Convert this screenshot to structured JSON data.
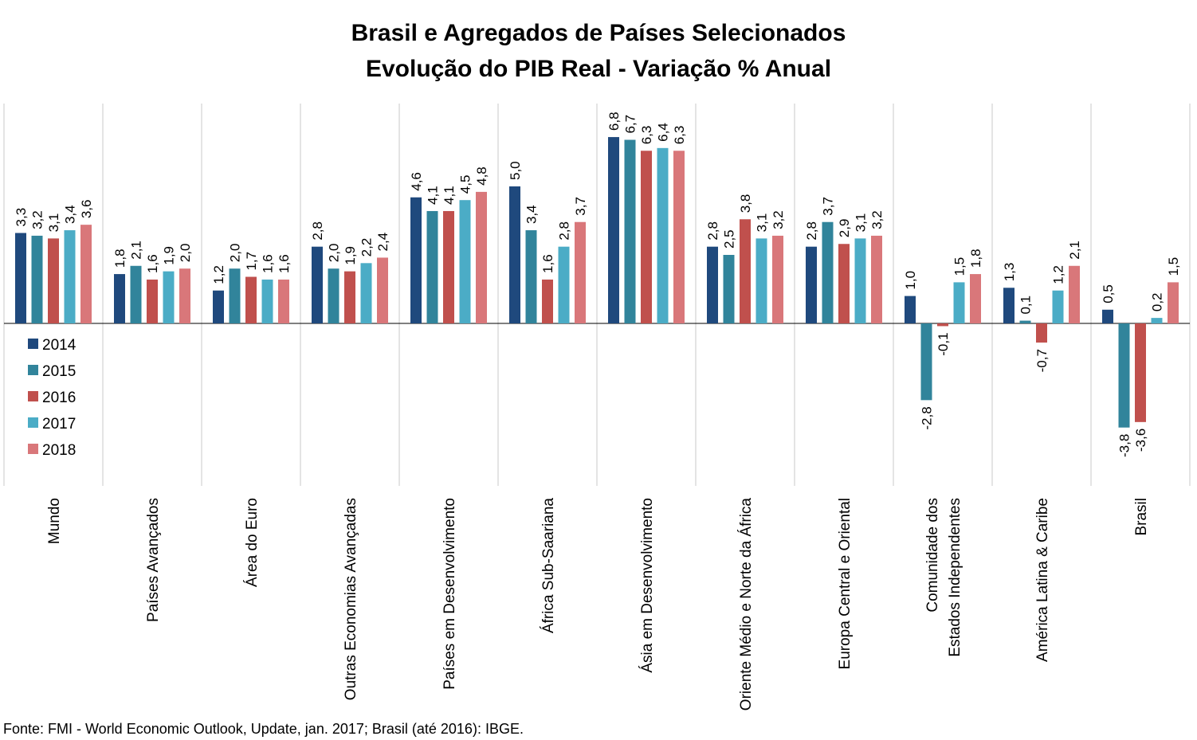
{
  "chart_data": {
    "type": "bar",
    "title": "Brasil e Agregados de Países Selecionados",
    "subtitle": "Evolução do PIB Real - Variação % Anual",
    "source": "Fonte: FMI - World Economic Outlook, Update, jan. 2017; Brasil (até 2016): IBGE.",
    "categories": [
      [
        "Mundo"
      ],
      [
        "Países Avançados"
      ],
      [
        "Área do Euro"
      ],
      [
        "Outras Economias Avançadas"
      ],
      [
        "Países em Desenvolvimento"
      ],
      [
        "África Sub-Saariana"
      ],
      [
        "Ásia em Desenvolvimento"
      ],
      [
        "Oriente Médio e Norte da África"
      ],
      [
        "Europa Central e Oriental"
      ],
      [
        "Comunidade dos",
        "Estados Independentes"
      ],
      [
        "América Latina & Caribe"
      ],
      [
        "Brasil"
      ]
    ],
    "series": [
      {
        "name": "2014",
        "color": "#1f497d",
        "values": [
          3.3,
          1.8,
          1.2,
          2.8,
          4.6,
          5.0,
          6.8,
          2.8,
          2.8,
          1.0,
          1.3,
          0.5
        ],
        "labels": [
          "3,3",
          "1,8",
          "1,2",
          "2,8",
          "4,6",
          "5,0",
          "6,8",
          "2,8",
          "2,8",
          "1,0",
          "1,3",
          "0,5"
        ]
      },
      {
        "name": "2015",
        "color": "#31849b",
        "values": [
          3.2,
          2.1,
          2.0,
          2.0,
          4.1,
          3.4,
          6.7,
          2.5,
          3.7,
          -2.8,
          0.1,
          -3.8
        ],
        "labels": [
          "3,2",
          "2,1",
          "2,0",
          "2,0",
          "4,1",
          "3,4",
          "6,7",
          "2,5",
          "3,7",
          "-2,8",
          "0,1",
          "-3,8"
        ]
      },
      {
        "name": "2016",
        "color": "#c0504d",
        "values": [
          3.1,
          1.6,
          1.7,
          1.9,
          4.1,
          1.6,
          6.3,
          3.8,
          2.9,
          -0.1,
          -0.7,
          -3.6
        ],
        "labels": [
          "3,1",
          "1,6",
          "1,7",
          "1,9",
          "4,1",
          "1,6",
          "6,3",
          "3,8",
          "2,9",
          "-0,1",
          "-0,7",
          "-3,6"
        ]
      },
      {
        "name": "2017",
        "color": "#4bacc6",
        "values": [
          3.4,
          1.9,
          1.6,
          2.2,
          4.5,
          2.8,
          6.4,
          3.1,
          3.1,
          1.5,
          1.2,
          0.2
        ],
        "labels": [
          "3,4",
          "1,9",
          "1,6",
          "2,2",
          "4,5",
          "2,8",
          "6,4",
          "3,1",
          "3,1",
          "1,5",
          "1,2",
          "0,2"
        ]
      },
      {
        "name": "2018",
        "color": "#d9777a",
        "values": [
          3.6,
          2.0,
          1.6,
          2.4,
          4.8,
          3.7,
          6.3,
          3.2,
          3.2,
          1.8,
          2.1,
          1.5
        ],
        "labels": [
          "3,6",
          "2,0",
          "1,6",
          "2,4",
          "4,8",
          "3,7",
          "6,3",
          "3,2",
          "3,2",
          "1,8",
          "2,1",
          "1,5"
        ]
      }
    ],
    "legend_position": "left",
    "gridlines": "vertical category separators"
  }
}
